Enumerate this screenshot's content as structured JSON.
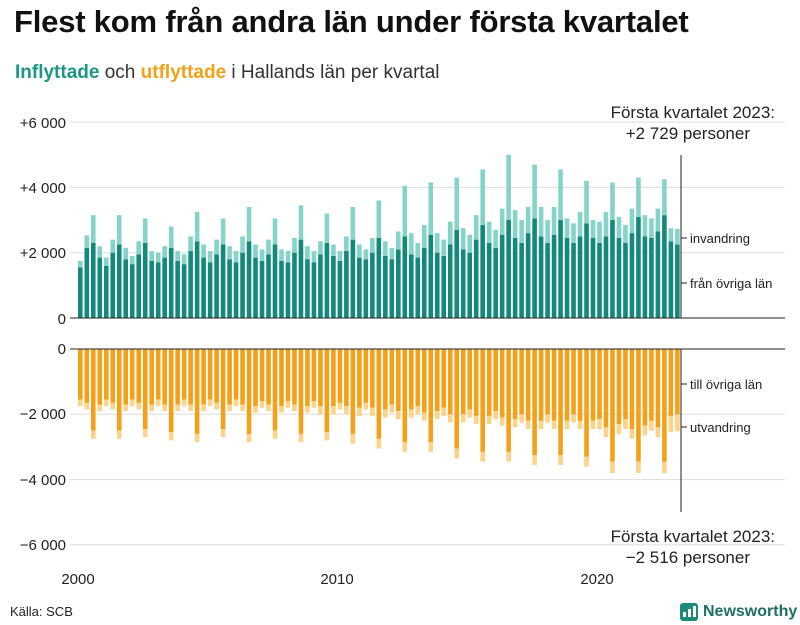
{
  "title": "Flest kom från andra län under första kvartalet",
  "subtitle": {
    "in_label": "Inflyttade",
    "mid": " och ",
    "out_label": "utflyttade",
    "rest": " i Hallands län per kvartal"
  },
  "source": "Källa: SCB",
  "logo": {
    "text": "Newsworthy",
    "icon": "bar-chart-icon"
  },
  "colors": {
    "in_domestic": "#12897a",
    "in_immigration": "#86d3c9",
    "out_domestic": "#f4a11a",
    "out_emigration": "#fbd38a",
    "grid": "#dddddd"
  },
  "chart_data": {
    "type": "bar",
    "title": "Flest kom från andra län under första kvartalet",
    "stacked": true,
    "diverging": true,
    "first_period": "2000 Q1",
    "last_period": "2023 Q1",
    "quarters": 93,
    "x_ticks": [
      "2000",
      "2010",
      "2020"
    ],
    "y_ticks_upper": [
      "+6 000",
      "+4 000",
      "+2 000",
      "0"
    ],
    "y_ticks_lower": [
      "0",
      "−2 000",
      "−4 000",
      "−6 000"
    ],
    "ylim_upper": [
      0,
      6000
    ],
    "ylim_lower": [
      -6000,
      0
    ],
    "series_labels": {
      "in_immigration": "invandring",
      "in_domestic": "från övriga län",
      "out_domestic": "till övriga län",
      "out_emigration": "utvandring"
    },
    "series": [
      {
        "name": "från övriga län",
        "key": "in_domestic",
        "values": [
          1550,
          2150,
          2300,
          1850,
          1600,
          2000,
          2250,
          1800,
          1650,
          1950,
          2300,
          1750,
          1700,
          1850,
          2150,
          1750,
          1650,
          2050,
          2350,
          1850,
          1700,
          1950,
          2250,
          1800,
          1700,
          2000,
          2350,
          1850,
          1750,
          1950,
          2250,
          1750,
          1700,
          2000,
          2400,
          1800,
          1700,
          1950,
          2300,
          1900,
          1750,
          2050,
          2400,
          1850,
          1800,
          2000,
          2450,
          1900,
          1800,
          2100,
          2500,
          1950,
          1850,
          2150,
          2550,
          2000,
          1900,
          2250,
          2700,
          2100,
          2000,
          2400,
          2850,
          2300,
          2150,
          2550,
          3000,
          2450,
          2300,
          2600,
          3050,
          2500,
          2300,
          2550,
          3000,
          2450,
          2300,
          2500,
          2900,
          2450,
          2300,
          2500,
          3000,
          2450,
          2300,
          2600,
          3100,
          2500,
          2450,
          2650,
          3150,
          2350,
          2250
        ]
      },
      {
        "name": "invandring",
        "key": "in_immigration",
        "values": [
          200,
          380,
          850,
          350,
          250,
          400,
          900,
          350,
          250,
          400,
          750,
          300,
          300,
          350,
          650,
          300,
          300,
          450,
          900,
          400,
          350,
          450,
          800,
          400,
          350,
          500,
          1050,
          400,
          350,
          450,
          800,
          350,
          350,
          450,
          1050,
          400,
          350,
          400,
          900,
          350,
          300,
          450,
          1000,
          400,
          300,
          450,
          1150,
          450,
          350,
          550,
          1550,
          650,
          450,
          700,
          1600,
          600,
          500,
          700,
          1600,
          650,
          550,
          750,
          1700,
          650,
          550,
          800,
          2000,
          850,
          700,
          800,
          1650,
          900,
          700,
          850,
          1550,
          600,
          600,
          750,
          1300,
          550,
          650,
          750,
          1150,
          650,
          550,
          750,
          1200,
          650,
          600,
          700,
          1100,
          400,
          479
        ]
      },
      {
        "name": "till övriga län",
        "key": "out_domestic",
        "values": [
          -1550,
          -1650,
          -2500,
          -1700,
          -1550,
          -1650,
          -2500,
          -1700,
          -1550,
          -1650,
          -2450,
          -1700,
          -1550,
          -1700,
          -2550,
          -1700,
          -1550,
          -1700,
          -2600,
          -1700,
          -1550,
          -1650,
          -2450,
          -1700,
          -1550,
          -1700,
          -2600,
          -1750,
          -1600,
          -1700,
          -2500,
          -1750,
          -1600,
          -1700,
          -2600,
          -1750,
          -1600,
          -1750,
          -2550,
          -1750,
          -1650,
          -1750,
          -2600,
          -1800,
          -1650,
          -1800,
          -2750,
          -1850,
          -1700,
          -1900,
          -2850,
          -1850,
          -1750,
          -1950,
          -2850,
          -1900,
          -1800,
          -2000,
          -3050,
          -2000,
          -1850,
          -2050,
          -3150,
          -2050,
          -1900,
          -2100,
          -3150,
          -2150,
          -2000,
          -2200,
          -3250,
          -2200,
          -2000,
          -2200,
          -3250,
          -2200,
          -2000,
          -2200,
          -3300,
          -2200,
          -2150,
          -2400,
          -3450,
          -2300,
          -2150,
          -2450,
          -3450,
          -2350,
          -2200,
          -2400,
          -3450,
          -2050,
          -2000
        ]
      },
      {
        "name": "utvandring",
        "key": "out_emigration",
        "values": [
          -200,
          -200,
          -250,
          -200,
          -200,
          -200,
          -250,
          -200,
          -200,
          -200,
          -250,
          -200,
          -200,
          -200,
          -250,
          -200,
          -200,
          -200,
          -250,
          -200,
          -200,
          -200,
          -250,
          -200,
          -200,
          -200,
          -250,
          -200,
          -200,
          -200,
          -250,
          -200,
          -200,
          -200,
          -250,
          -200,
          -200,
          -250,
          -250,
          -250,
          -200,
          -250,
          -300,
          -250,
          -200,
          -250,
          -300,
          -250,
          -250,
          -250,
          -300,
          -250,
          -250,
          -250,
          -300,
          -250,
          -250,
          -250,
          -300,
          -250,
          -250,
          -250,
          -300,
          -250,
          -250,
          -250,
          -300,
          -250,
          -250,
          -250,
          -300,
          -250,
          -250,
          -250,
          -300,
          -250,
          -250,
          -250,
          -300,
          -250,
          -300,
          -300,
          -350,
          -300,
          -300,
          -300,
          -350,
          -300,
          -300,
          -300,
          -350,
          -500,
          -516
        ]
      }
    ],
    "annotations": [
      {
        "text_line1": "Första kvartalet 2023:",
        "text_line2": "+2 729 personer",
        "position": "top-right"
      },
      {
        "text_line1": "Första kvartalet 2023:",
        "text_line2": "−2 516 personer",
        "position": "bottom-right"
      }
    ]
  }
}
